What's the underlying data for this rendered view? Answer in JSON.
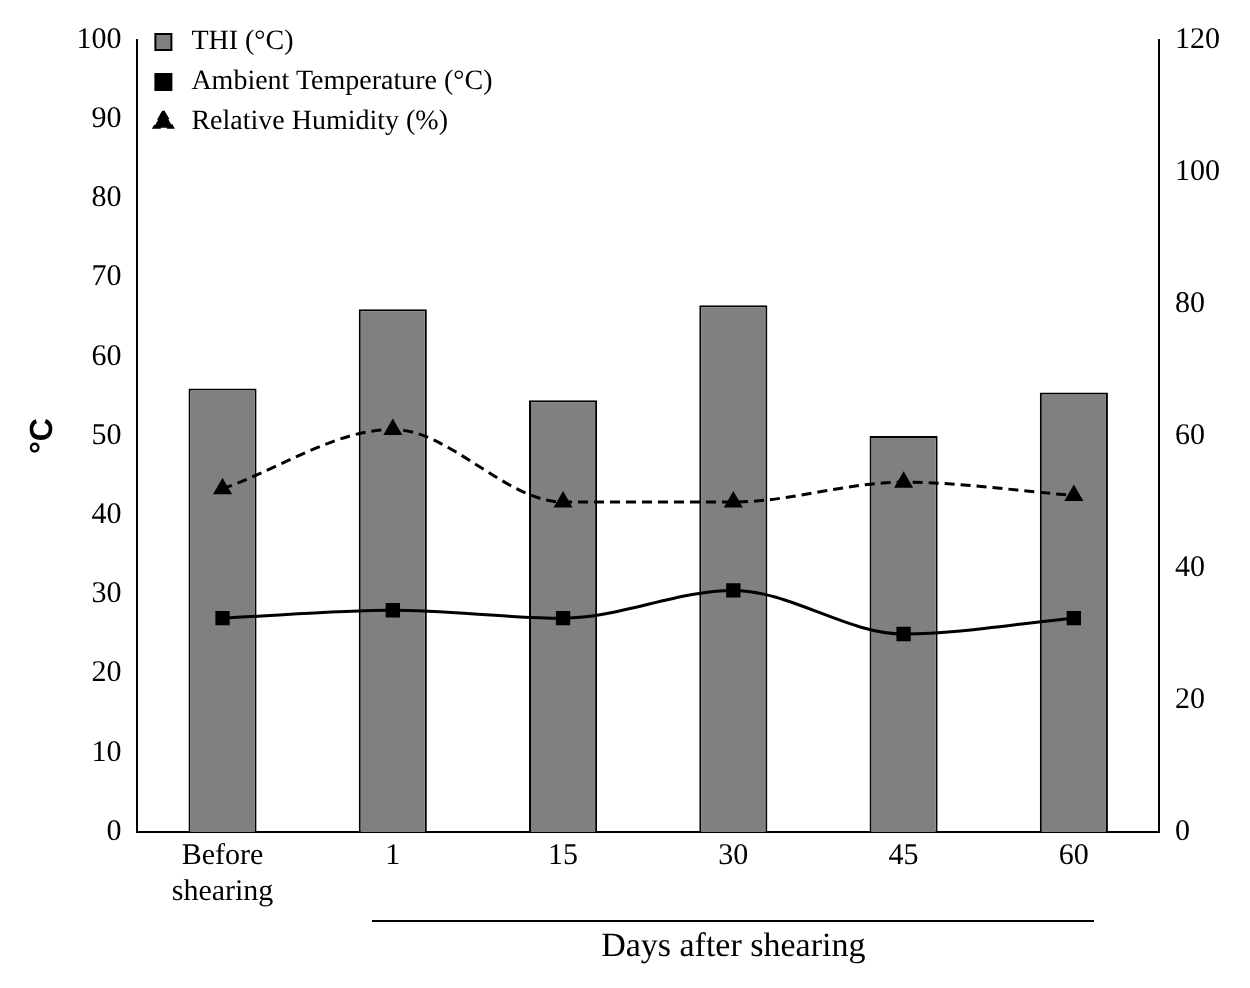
{
  "chart_data": {
    "type": "bar",
    "ylabel": "°C",
    "xlabel": "Days after shearing",
    "categories": [
      "Before shearing",
      "1",
      "15",
      "30",
      "45",
      "60"
    ],
    "series": [
      {
        "name": "THI (°C)",
        "color": "#808080",
        "values": [
          56,
          66,
          54.5,
          66.5,
          50,
          55.5
        ]
      },
      {
        "name": "Ambient Temperature (°C)",
        "type": "line",
        "color": "#000000",
        "marker": "square",
        "line_style": "solid",
        "values": [
          27,
          28,
          27,
          30.5,
          25,
          27
        ]
      },
      {
        "name": "Relative Humidity (%)",
        "type": "line",
        "axis": "y2",
        "color": "#000000",
        "marker": "triangle",
        "line_style": "dashed",
        "values": [
          52,
          61,
          50,
          50,
          53,
          51
        ]
      }
    ],
    "ylim": [
      0,
      100
    ],
    "yticks": [
      0,
      10,
      20,
      30,
      40,
      50,
      60,
      70,
      80,
      90,
      100
    ],
    "y2lim": [
      0,
      120
    ],
    "y2ticks": [
      0,
      20,
      40,
      60,
      80,
      100,
      120
    ],
    "grid": false,
    "legend": "top left"
  }
}
